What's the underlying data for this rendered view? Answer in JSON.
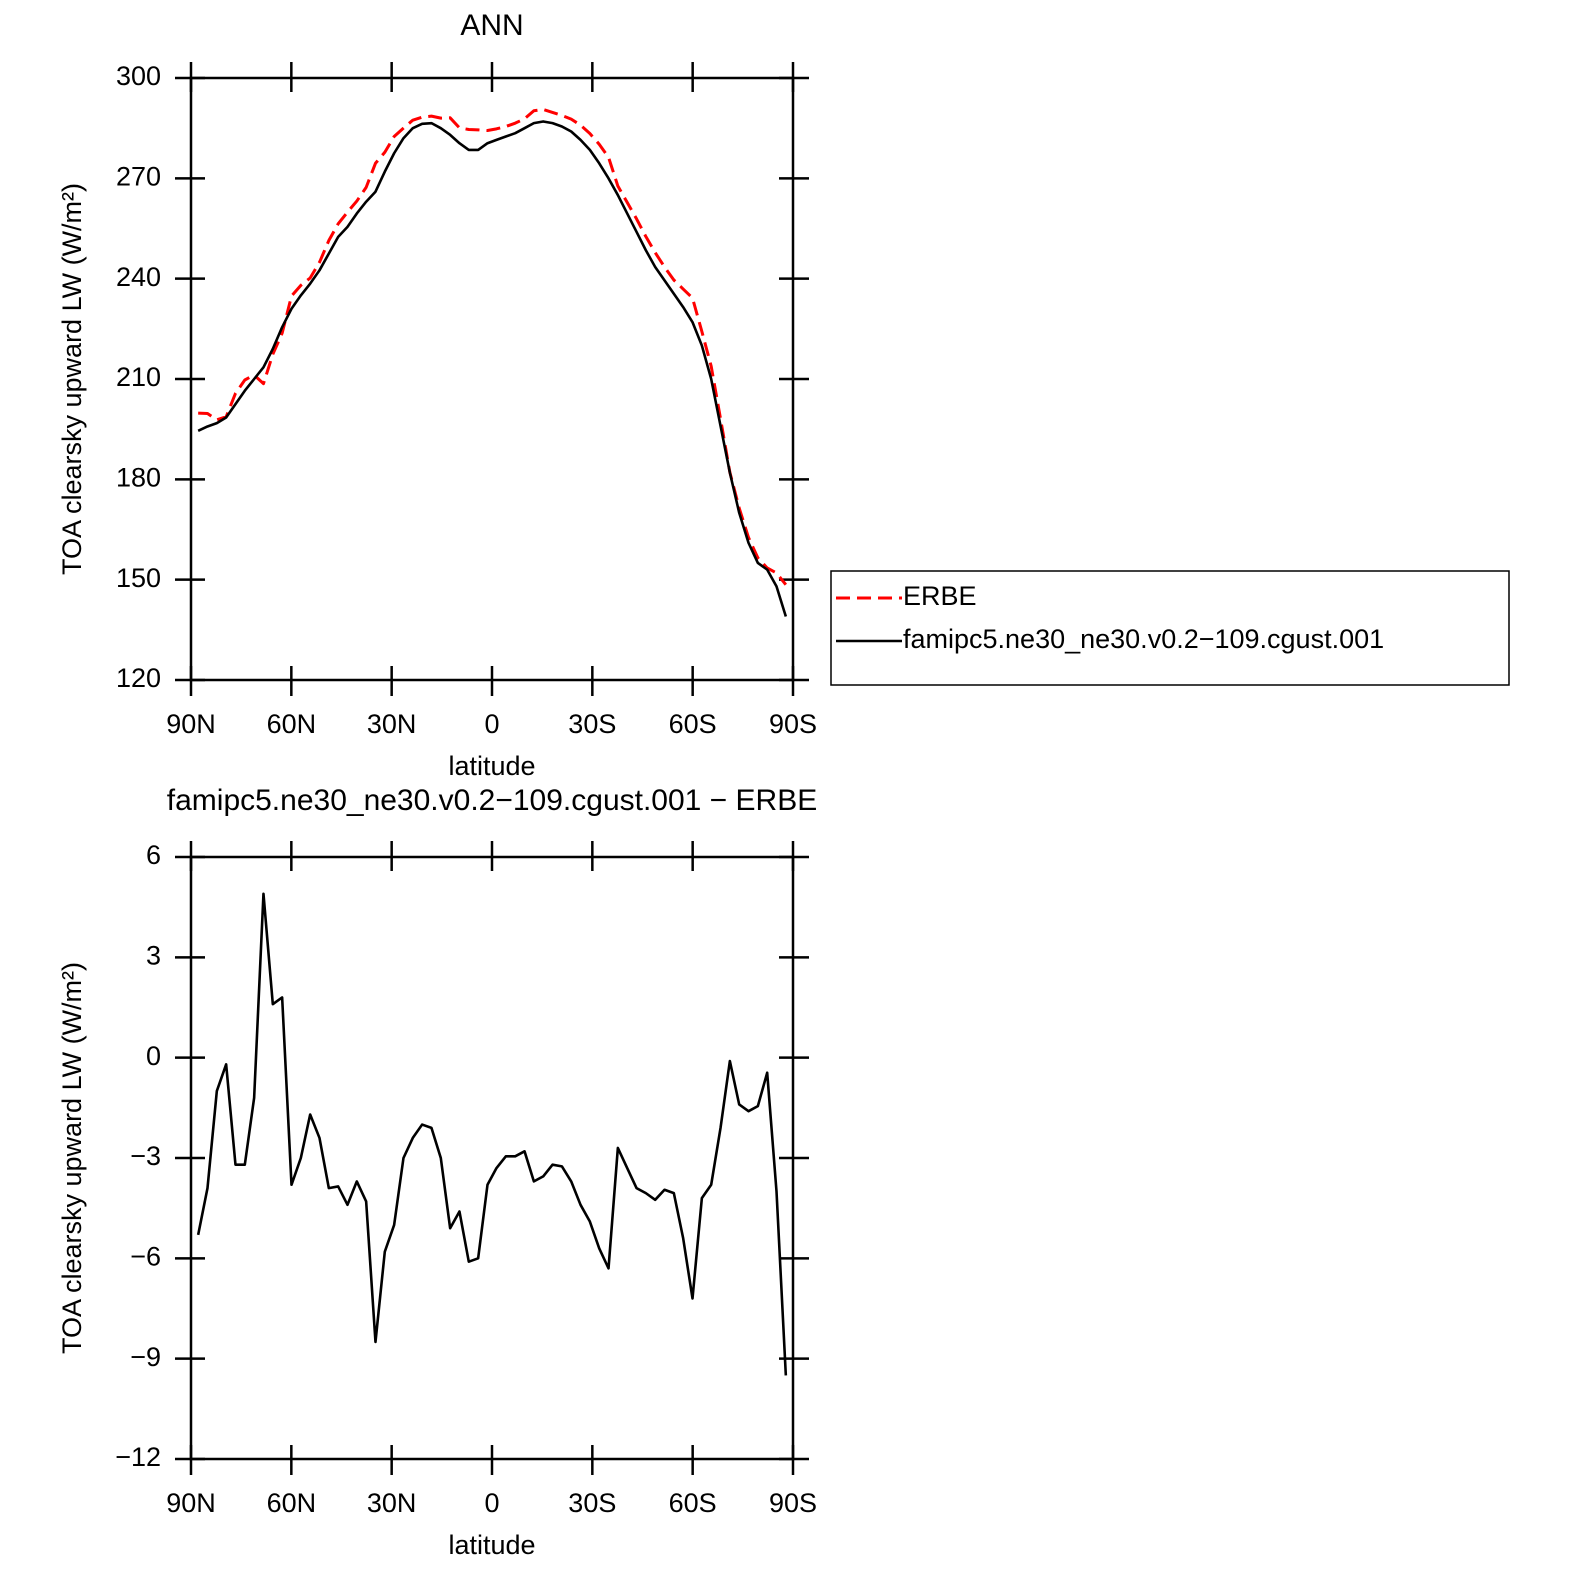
{
  "chart_data": [
    {
      "type": "line",
      "title": "ANN",
      "xlabel": "latitude",
      "ylabel": "TOA clearsky upward LW (W/m²)",
      "x": [
        87.86,
        85.07,
        82.28,
        79.49,
        76.7,
        73.91,
        71.12,
        68.33,
        65.54,
        62.75,
        59.95,
        57.16,
        54.37,
        51.58,
        48.79,
        46.0,
        43.21,
        40.42,
        37.63,
        34.84,
        32.05,
        29.26,
        26.47,
        23.68,
        20.89,
        18.1,
        15.31,
        12.52,
        9.73,
        6.94,
        4.14,
        1.35,
        -1.35,
        -4.14,
        -6.94,
        -9.73,
        -12.52,
        -15.31,
        -18.1,
        -20.89,
        -23.68,
        -26.47,
        -29.26,
        -32.05,
        -34.84,
        -37.63,
        -40.42,
        -43.21,
        -46.0,
        -48.79,
        -51.58,
        -54.37,
        -57.16,
        -59.95,
        -62.75,
        -65.54,
        -68.33,
        -71.12,
        -73.91,
        -76.7,
        -79.49,
        -82.28,
        -85.07,
        -87.86
      ],
      "series": [
        {
          "name": "ERBE",
          "color": "#ff0000",
          "dash": true,
          "values": [
            199.8,
            199.7,
            197.8,
            198.7,
            205.7,
            209.7,
            211.2,
            208.6,
            217.4,
            223.7,
            234.8,
            238,
            240.2,
            244.9,
            251.4,
            256.4,
            259.9,
            263.2,
            267.3,
            274.5,
            277.8,
            282.5,
            285,
            287.4,
            288.3,
            288.6,
            288,
            288.1,
            285.1,
            284.6,
            284.5,
            284.3,
            284.8,
            285.5,
            286.5,
            287.8,
            290.2,
            290.6,
            289.7,
            288.8,
            287.7,
            285.9,
            283.4,
            280.2,
            276.3,
            267.7,
            262.8,
            257.9,
            252.6,
            247.8,
            243.5,
            239.6,
            236.9,
            234.2,
            224.2,
            213.8,
            198.1,
            182.1,
            171.4,
            162.6,
            156.5,
            153.5,
            152,
            148.5
          ]
        },
        {
          "name": "famipc5.ne30_ne30.v0.2−109.cgust.001",
          "color": "#000000",
          "dash": false,
          "values": [
            194.5,
            195.8,
            196.8,
            198.5,
            202.5,
            206.5,
            210,
            213.5,
            219,
            225.5,
            231,
            235,
            238.5,
            242.5,
            247.5,
            252.5,
            255.5,
            259.5,
            263,
            266,
            272,
            277.5,
            282,
            285,
            286.3,
            286.5,
            285,
            283,
            280.5,
            278.5,
            278.5,
            280.5,
            281.5,
            282.5,
            283.5,
            285,
            286.5,
            287,
            286.5,
            285.5,
            284,
            281.5,
            278.5,
            274.5,
            270,
            265,
            259.5,
            254,
            248.5,
            243.5,
            239.5,
            235.5,
            231.5,
            227,
            220,
            210,
            196,
            182,
            170,
            161,
            155,
            153,
            148,
            139
          ]
        }
      ],
      "xlim": [
        90,
        -90
      ],
      "xticks": [
        {
          "value": 90,
          "label": "90N"
        },
        {
          "value": 60,
          "label": "60N"
        },
        {
          "value": 30,
          "label": "30N"
        },
        0,
        {
          "value": -30,
          "label": "30S"
        },
        {
          "value": -60,
          "label": "60S"
        },
        {
          "value": -90,
          "label": "90S"
        }
      ],
      "ylim": [
        120,
        300
      ],
      "yticks": [
        120,
        150,
        180,
        210,
        240,
        270,
        300
      ],
      "legend": "right"
    },
    {
      "type": "line",
      "title": "famipc5.ne30_ne30.v0.2−109.cgust.001  −  ERBE",
      "xlabel": "latitude",
      "ylabel": "TOA clearsky upward LW (W/m²)",
      "x": [
        87.86,
        85.07,
        82.28,
        79.49,
        76.7,
        73.91,
        71.12,
        68.33,
        65.54,
        62.75,
        59.95,
        57.16,
        54.37,
        51.58,
        48.79,
        46.0,
        43.21,
        40.42,
        37.63,
        34.84,
        32.05,
        29.26,
        26.47,
        23.68,
        20.89,
        18.1,
        15.31,
        12.52,
        9.73,
        6.94,
        4.14,
        1.35,
        -1.35,
        -4.14,
        -6.94,
        -9.73,
        -12.52,
        -15.31,
        -18.1,
        -20.89,
        -23.68,
        -26.47,
        -29.26,
        -32.05,
        -34.84,
        -37.63,
        -40.42,
        -43.21,
        -46.0,
        -48.79,
        -51.58,
        -54.37,
        -57.16,
        -59.95,
        -62.75,
        -65.54,
        -68.33,
        -71.12,
        -73.91,
        -76.7,
        -79.49,
        -82.28,
        -85.07,
        -87.86
      ],
      "series": [
        {
          "color": "#000000",
          "dash": false,
          "values": [
            -5.3,
            -3.9,
            -1.0,
            -0.2,
            -3.2,
            -3.2,
            -1.2,
            4.9,
            1.6,
            1.8,
            -3.8,
            -3.0,
            -1.7,
            -2.4,
            -3.9,
            -3.85,
            -4.4,
            -3.7,
            -4.3,
            -8.5,
            -5.8,
            -5.0,
            -3.0,
            -2.4,
            -2.0,
            -2.1,
            -3.0,
            -5.1,
            -4.6,
            -6.1,
            -6.0,
            -3.8,
            -3.3,
            -2.95,
            -2.95,
            -2.8,
            -3.7,
            -3.55,
            -3.2,
            -3.25,
            -3.7,
            -4.4,
            -4.9,
            -5.7,
            -6.3,
            -2.7,
            -3.3,
            -3.9,
            -4.05,
            -4.25,
            -3.95,
            -4.05,
            -5.4,
            -7.2,
            -4.2,
            -3.8,
            -2.1,
            -0.1,
            -1.4,
            -1.6,
            -1.45,
            -0.45,
            -4.0,
            -9.5
          ]
        }
      ],
      "xlim": [
        90,
        -90
      ],
      "xticks": [
        {
          "value": 90,
          "label": "90N"
        },
        {
          "value": 60,
          "label": "60N"
        },
        {
          "value": 30,
          "label": "30N"
        },
        0,
        {
          "value": -30,
          "label": "30S"
        },
        {
          "value": -60,
          "label": "60S"
        },
        {
          "value": -90,
          "label": "90S"
        }
      ],
      "ylim": [
        -12,
        6
      ],
      "yticks": [
        {
          "value": -12,
          "label": "−12"
        },
        {
          "value": -9,
          "label": "−9"
        },
        {
          "value": -6,
          "label": "−6"
        },
        {
          "value": -3,
          "label": "−3"
        },
        0,
        3,
        6
      ]
    }
  ]
}
